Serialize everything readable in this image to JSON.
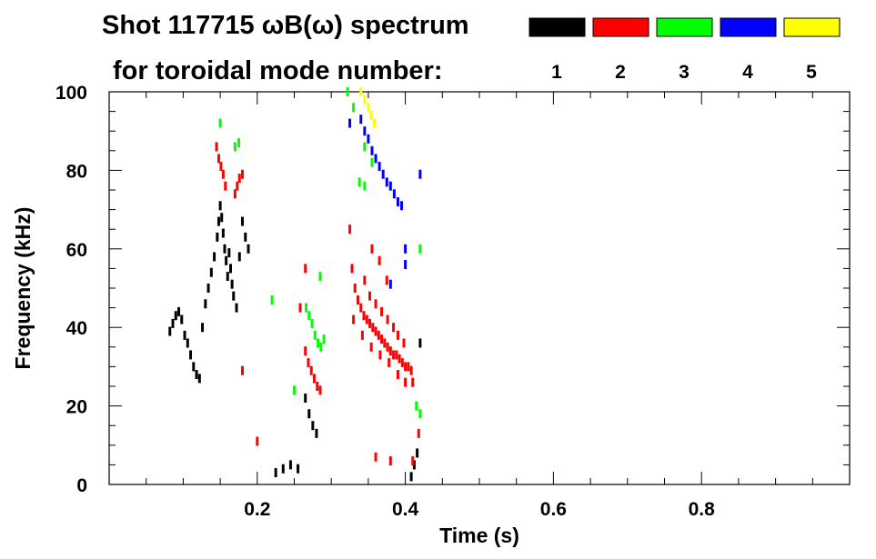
{
  "chart_data": {
    "type": "scatter",
    "title_line1": "Shot 117715 ωB(ω) spectrum",
    "title_line2": "for toroidal mode number:",
    "xlabel": "Time (s)",
    "ylabel": "Frequency (kHz)",
    "xlim": [
      0.0,
      1.0
    ],
    "ylim": [
      0,
      100
    ],
    "x_ticks": [
      0.2,
      0.4,
      0.6,
      0.8
    ],
    "x_tick_labels": [
      "0.2",
      "0.4",
      "0.6",
      "0.8"
    ],
    "y_ticks": [
      0,
      20,
      40,
      60,
      80,
      100
    ],
    "y_tick_labels": [
      "0",
      "20",
      "40",
      "60",
      "80",
      "100"
    ],
    "legend_position": "top-right",
    "series": [
      {
        "name": "1",
        "color": "#000000",
        "points": [
          [
            0.082,
            39
          ],
          [
            0.086,
            41
          ],
          [
            0.09,
            43
          ],
          [
            0.094,
            44
          ],
          [
            0.098,
            42
          ],
          [
            0.102,
            38
          ],
          [
            0.106,
            36
          ],
          [
            0.11,
            33
          ],
          [
            0.114,
            30
          ],
          [
            0.118,
            28
          ],
          [
            0.122,
            27
          ],
          [
            0.126,
            40
          ],
          [
            0.13,
            46
          ],
          [
            0.134,
            50
          ],
          [
            0.138,
            54
          ],
          [
            0.142,
            58
          ],
          [
            0.146,
            63
          ],
          [
            0.148,
            67
          ],
          [
            0.15,
            71
          ],
          [
            0.152,
            68
          ],
          [
            0.154,
            64
          ],
          [
            0.156,
            60
          ],
          [
            0.158,
            57
          ],
          [
            0.16,
            53
          ],
          [
            0.162,
            59
          ],
          [
            0.164,
            55
          ],
          [
            0.166,
            51
          ],
          [
            0.168,
            48
          ],
          [
            0.172,
            45
          ],
          [
            0.176,
            58
          ],
          [
            0.18,
            67
          ],
          [
            0.184,
            63
          ],
          [
            0.188,
            60
          ],
          [
            0.225,
            3
          ],
          [
            0.235,
            4
          ],
          [
            0.245,
            5
          ],
          [
            0.255,
            4
          ],
          [
            0.265,
            22
          ],
          [
            0.27,
            18
          ],
          [
            0.275,
            15
          ],
          [
            0.28,
            13
          ],
          [
            0.408,
            2
          ],
          [
            0.412,
            5
          ],
          [
            0.416,
            8
          ],
          [
            0.42,
            36
          ]
        ]
      },
      {
        "name": "2",
        "color": "#ff0000",
        "points": [
          [
            0.145,
            86
          ],
          [
            0.148,
            83
          ],
          [
            0.151,
            81
          ],
          [
            0.154,
            79
          ],
          [
            0.157,
            76
          ],
          [
            0.17,
            74
          ],
          [
            0.173,
            76
          ],
          [
            0.176,
            78
          ],
          [
            0.18,
            79
          ],
          [
            0.265,
            34
          ],
          [
            0.269,
            31
          ],
          [
            0.273,
            29
          ],
          [
            0.277,
            27
          ],
          [
            0.281,
            25
          ],
          [
            0.285,
            24
          ],
          [
            0.325,
            65
          ],
          [
            0.328,
            55
          ],
          [
            0.332,
            50
          ],
          [
            0.336,
            47
          ],
          [
            0.34,
            45
          ],
          [
            0.344,
            43
          ],
          [
            0.348,
            42
          ],
          [
            0.352,
            41
          ],
          [
            0.356,
            40
          ],
          [
            0.36,
            39
          ],
          [
            0.364,
            38
          ],
          [
            0.368,
            37
          ],
          [
            0.372,
            36
          ],
          [
            0.376,
            35
          ],
          [
            0.38,
            34
          ],
          [
            0.384,
            33
          ],
          [
            0.388,
            33
          ],
          [
            0.392,
            32
          ],
          [
            0.396,
            31
          ],
          [
            0.4,
            30
          ],
          [
            0.404,
            30
          ],
          [
            0.408,
            29
          ],
          [
            0.345,
            52
          ],
          [
            0.352,
            48
          ],
          [
            0.36,
            46
          ],
          [
            0.368,
            44
          ],
          [
            0.376,
            42
          ],
          [
            0.384,
            40
          ],
          [
            0.39,
            38
          ],
          [
            0.398,
            36
          ],
          [
            0.355,
            60
          ],
          [
            0.365,
            57
          ],
          [
            0.375,
            52
          ],
          [
            0.33,
            42
          ],
          [
            0.342,
            38
          ],
          [
            0.354,
            35
          ],
          [
            0.366,
            33
          ],
          [
            0.378,
            31
          ],
          [
            0.39,
            28
          ],
          [
            0.4,
            26
          ],
          [
            0.41,
            26
          ],
          [
            0.41,
            6
          ],
          [
            0.418,
            13
          ],
          [
            0.36,
            7
          ],
          [
            0.38,
            6
          ],
          [
            0.2,
            11
          ],
          [
            0.265,
            55
          ],
          [
            0.258,
            45
          ],
          [
            0.18,
            29
          ]
        ]
      },
      {
        "name": "3",
        "color": "#00ff00",
        "points": [
          [
            0.15,
            92
          ],
          [
            0.175,
            87
          ],
          [
            0.17,
            86
          ],
          [
            0.266,
            45
          ],
          [
            0.27,
            43
          ],
          [
            0.274,
            41
          ],
          [
            0.278,
            38
          ],
          [
            0.282,
            36
          ],
          [
            0.286,
            35
          ],
          [
            0.29,
            37
          ],
          [
            0.322,
            100
          ],
          [
            0.33,
            96
          ],
          [
            0.345,
            86
          ],
          [
            0.355,
            82
          ],
          [
            0.345,
            76
          ],
          [
            0.338,
            77
          ],
          [
            0.42,
            60
          ],
          [
            0.42,
            18
          ],
          [
            0.415,
            20
          ],
          [
            0.25,
            24
          ],
          [
            0.22,
            47
          ],
          [
            0.285,
            53
          ]
        ]
      },
      {
        "name": "4",
        "color": "#0000ff",
        "points": [
          [
            0.325,
            92
          ],
          [
            0.34,
            93
          ],
          [
            0.345,
            90
          ],
          [
            0.35,
            88
          ],
          [
            0.355,
            85
          ],
          [
            0.36,
            83
          ],
          [
            0.365,
            81
          ],
          [
            0.37,
            79
          ],
          [
            0.375,
            77
          ],
          [
            0.38,
            76
          ],
          [
            0.385,
            74
          ],
          [
            0.39,
            72
          ],
          [
            0.395,
            71
          ],
          [
            0.42,
            79
          ],
          [
            0.4,
            60
          ],
          [
            0.38,
            51
          ],
          [
            0.4,
            56
          ]
        ]
      },
      {
        "name": "5",
        "color": "#ffff00",
        "points": [
          [
            0.34,
            100
          ],
          [
            0.345,
            98
          ],
          [
            0.35,
            96
          ],
          [
            0.354,
            94
          ],
          [
            0.358,
            92
          ]
        ]
      }
    ]
  }
}
